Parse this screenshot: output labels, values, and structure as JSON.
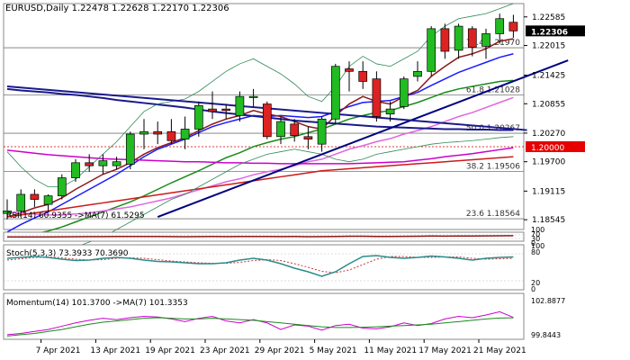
{
  "symbol_header": "EURUSD,Daily  1.22478 1.22628 1.22170 1.22306",
  "chart_data": {
    "type": "candlestick",
    "symbol": "EURUSD",
    "timeframe": "Daily",
    "ohlc_header": {
      "open": 1.22478,
      "high": 1.22628,
      "low": 1.2217,
      "close": 1.22306
    },
    "current_price": "1.22306",
    "price_axis_ticks": [
      1.22585,
      1.22015,
      1.21425,
      1.20855,
      1.2027,
      1.197,
      1.19115,
      1.18545
    ],
    "ylim": [
      1.1835,
      1.2285
    ],
    "x_labels": [
      "7 Apr 2021",
      "13 Apr 2021",
      "19 Apr 2021",
      "23 Apr 2021",
      "29 Apr 2021",
      "5 May 2021",
      "11 May 2021",
      "17 May 2021",
      "21 May 2021"
    ],
    "x_label_days": [
      3,
      7,
      11,
      15,
      19,
      23,
      27,
      31,
      35
    ],
    "candles": [
      {
        "o": 1.1867,
        "h": 1.1895,
        "l": 1.1855,
        "c": 1.1872
      },
      {
        "o": 1.1872,
        "h": 1.1915,
        "l": 1.186,
        "c": 1.1905
      },
      {
        "o": 1.1905,
        "h": 1.1915,
        "l": 1.188,
        "c": 1.1895
      },
      {
        "o": 1.1885,
        "h": 1.1905,
        "l": 1.187,
        "c": 1.1902
      },
      {
        "o": 1.1902,
        "h": 1.1945,
        "l": 1.1895,
        "c": 1.1938
      },
      {
        "o": 1.1938,
        "h": 1.1975,
        "l": 1.193,
        "c": 1.1968
      },
      {
        "o": 1.1968,
        "h": 1.1985,
        "l": 1.195,
        "c": 1.1962
      },
      {
        "o": 1.1962,
        "h": 1.1985,
        "l": 1.1945,
        "c": 1.1972
      },
      {
        "o": 1.1962,
        "h": 1.198,
        "l": 1.1955,
        "c": 1.197
      },
      {
        "o": 1.1965,
        "h": 1.203,
        "l": 1.1955,
        "c": 1.2025
      },
      {
        "o": 1.2025,
        "h": 1.2055,
        "l": 1.1995,
        "c": 1.203
      },
      {
        "o": 1.203,
        "h": 1.205,
        "l": 1.2005,
        "c": 1.2025
      },
      {
        "o": 1.203,
        "h": 1.2055,
        "l": 1.2005,
        "c": 1.2012
      },
      {
        "o": 1.2015,
        "h": 1.206,
        "l": 1.1995,
        "c": 1.2035
      },
      {
        "o": 1.2035,
        "h": 1.209,
        "l": 1.202,
        "c": 1.2082
      },
      {
        "o": 1.2075,
        "h": 1.211,
        "l": 1.2055,
        "c": 1.207
      },
      {
        "o": 1.2075,
        "h": 1.2085,
        "l": 1.2055,
        "c": 1.2072
      },
      {
        "o": 1.2062,
        "h": 1.211,
        "l": 1.205,
        "c": 1.21
      },
      {
        "o": 1.21,
        "h": 1.2115,
        "l": 1.208,
        "c": 1.21
      },
      {
        "o": 1.2085,
        "h": 1.209,
        "l": 1.2015,
        "c": 1.202
      },
      {
        "o": 1.202,
        "h": 1.206,
        "l": 1.2005,
        "c": 1.205
      },
      {
        "o": 1.2045,
        "h": 1.2055,
        "l": 1.201,
        "c": 1.2022
      },
      {
        "o": 1.202,
        "h": 1.204,
        "l": 1.1995,
        "c": 1.2015
      },
      {
        "o": 1.2005,
        "h": 1.206,
        "l": 1.199,
        "c": 1.2055
      },
      {
        "o": 1.2055,
        "h": 1.2165,
        "l": 1.2045,
        "c": 1.216
      },
      {
        "o": 1.2155,
        "h": 1.217,
        "l": 1.211,
        "c": 1.215
      },
      {
        "o": 1.215,
        "h": 1.217,
        "l": 1.2115,
        "c": 1.213
      },
      {
        "o": 1.2135,
        "h": 1.215,
        "l": 1.205,
        "c": 1.206
      },
      {
        "o": 1.2065,
        "h": 1.209,
        "l": 1.205,
        "c": 1.2075
      },
      {
        "o": 1.208,
        "h": 1.214,
        "l": 1.2075,
        "c": 1.2135
      },
      {
        "o": 1.214,
        "h": 1.217,
        "l": 1.213,
        "c": 1.215
      },
      {
        "o": 1.215,
        "h": 1.224,
        "l": 1.214,
        "c": 1.2235
      },
      {
        "o": 1.2235,
        "h": 1.2245,
        "l": 1.2175,
        "c": 1.219
      },
      {
        "o": 1.2192,
        "h": 1.2245,
        "l": 1.2175,
        "c": 1.224
      },
      {
        "o": 1.2235,
        "h": 1.224,
        "l": 1.218,
        "c": 1.2198
      },
      {
        "o": 1.22,
        "h": 1.2235,
        "l": 1.2175,
        "c": 1.2225
      },
      {
        "o": 1.2225,
        "h": 1.2265,
        "l": 1.2205,
        "c": 1.2255
      },
      {
        "o": 1.22478,
        "h": 1.22628,
        "l": 1.2217,
        "c": 1.22306
      }
    ],
    "indicators": [
      {
        "name": "blue_ma_short",
        "color": "#1a1aff",
        "values": [
          1.183,
          1.1845,
          1.1858,
          1.187,
          1.1885,
          1.19,
          1.1915,
          1.193,
          1.1945,
          1.1962,
          1.198,
          1.1995,
          1.2005,
          1.2015,
          1.2028,
          1.204,
          1.2048,
          1.2055,
          1.2062,
          1.206,
          1.2062,
          1.206,
          1.2058,
          1.206,
          1.207,
          1.208,
          1.2088,
          1.209,
          1.2092,
          1.21,
          1.2108,
          1.2122,
          1.2135,
          1.2148,
          1.2158,
          1.2168,
          1.2178,
          1.2185
        ]
      },
      {
        "name": "dark_red_ma",
        "color": "#8b1a1a",
        "values": [
          1.186,
          1.1868,
          1.1878,
          1.1885,
          1.1898,
          1.1915,
          1.193,
          1.1945,
          1.1955,
          1.1968,
          1.1985,
          1.1998,
          1.2008,
          1.2018,
          1.2032,
          1.2045,
          1.2055,
          1.2062,
          1.2072,
          1.2065,
          1.206,
          1.205,
          1.204,
          1.2035,
          1.2062,
          1.2085,
          1.21,
          1.209,
          1.2085,
          1.21,
          1.2112,
          1.214,
          1.216,
          1.2178,
          1.2185,
          1.2195,
          1.221,
          1.2215
        ]
      },
      {
        "name": "green_ma",
        "color": "#1a8a1a",
        "values": [
          1.1815,
          1.182,
          1.1826,
          1.1832,
          1.184,
          1.185,
          1.186,
          1.187,
          1.188,
          1.189,
          1.1902,
          1.1915,
          1.1928,
          1.194,
          1.1952,
          1.1965,
          1.1978,
          1.1988,
          1.2,
          1.2008,
          1.2015,
          1.202,
          1.2028,
          1.2035,
          1.2045,
          1.2055,
          1.2062,
          1.2068,
          1.2072,
          1.208,
          1.2088,
          1.2098,
          1.2108,
          1.2115,
          1.212,
          1.2125,
          1.213,
          1.2132
        ]
      },
      {
        "name": "violet_ma",
        "color": "#e066e0",
        "values": [
          1.187,
          1.1868,
          1.1866,
          1.1864,
          1.1864,
          1.1866,
          1.1868,
          1.1872,
          1.1876,
          1.188,
          1.1886,
          1.1892,
          1.1898,
          1.1906,
          1.1914,
          1.1922,
          1.193,
          1.1936,
          1.1944,
          1.195,
          1.1955,
          1.1962,
          1.197,
          1.1975,
          1.1985,
          1.1995,
          1.2002,
          1.201,
          1.2016,
          1.2025,
          1.2032,
          1.204,
          1.205,
          1.206,
          1.2068,
          1.2078,
          1.2088,
          1.2098
        ]
      },
      {
        "name": "navy_ma",
        "color": "#1a1a8c",
        "values": [
          1.2115,
          1.2112,
          1.211,
          1.2108,
          1.2105,
          1.2103,
          1.21,
          1.2097,
          1.2093,
          1.209,
          1.2087,
          1.2084,
          1.2081,
          1.2078,
          1.2074,
          1.207,
          1.2067,
          1.2064,
          1.2061,
          1.2058,
          1.2055,
          1.2052,
          1.205,
          1.2048,
          1.2046,
          1.2044,
          1.2042,
          1.204,
          1.2039,
          1.2038,
          1.2037,
          1.2036,
          1.2035,
          1.2035,
          1.2034,
          1.2034,
          1.2033,
          1.2033
        ]
      },
      {
        "name": "magenta_ma",
        "color": "#cc00cc",
        "values": [
          1.1993,
          1.199,
          1.1987,
          1.1984,
          1.1982,
          1.198,
          1.1978,
          1.1976,
          1.1975,
          1.1974,
          1.1973,
          1.1972,
          1.1971,
          1.197,
          1.197,
          1.1969,
          1.1968,
          1.1968,
          1.1967,
          1.1967,
          1.1966,
          1.1966,
          1.1966,
          1.1966,
          1.1966,
          1.1966,
          1.1967,
          1.1968,
          1.1969,
          1.197,
          1.1973,
          1.1976,
          1.198,
          1.1983,
          1.1986,
          1.199,
          1.1994,
          1.1998
        ]
      },
      {
        "name": "red_ma",
        "color": "#cc1a1a",
        "values": [
          1.186,
          1.1864,
          1.1868,
          1.1872,
          1.1876,
          1.188,
          1.1884,
          1.1888,
          1.1892,
          1.1896,
          1.19,
          1.1904,
          1.1908,
          1.1912,
          1.1916,
          1.192,
          1.1924,
          1.1928,
          1.1932,
          1.1936,
          1.194,
          1.1944,
          1.1948,
          1.1952,
          1.1954,
          1.1956,
          1.1958,
          1.196,
          1.1962,
          1.1964,
          1.1966,
          1.1968,
          1.197,
          1.1972,
          1.1974,
          1.1976,
          1.1978,
          1.198
        ]
      },
      {
        "name": "bollinger_upper",
        "color": "#2e8b57",
        "values": [
          1.199,
          1.196,
          1.1935,
          1.192,
          1.192,
          1.1935,
          1.196,
          1.1985,
          1.201,
          1.204,
          1.207,
          1.2085,
          1.209,
          1.2095,
          1.211,
          1.213,
          1.215,
          1.2165,
          1.2175,
          1.216,
          1.2145,
          1.2125,
          1.21,
          1.209,
          1.212,
          1.216,
          1.218,
          1.2165,
          1.216,
          1.2175,
          1.219,
          1.222,
          1.224,
          1.2255,
          1.226,
          1.2265,
          1.2275,
          1.2285
        ]
      },
      {
        "name": "bollinger_lower",
        "color": "#2e8b57",
        "values": [
          1.176,
          1.1765,
          1.177,
          1.178,
          1.179,
          1.18,
          1.181,
          1.182,
          1.1835,
          1.185,
          1.1865,
          1.188,
          1.1895,
          1.1905,
          1.192,
          1.1935,
          1.195,
          1.1965,
          1.1975,
          1.1985,
          1.199,
          1.1995,
          1.199,
          1.1985,
          1.1975,
          1.197,
          1.1975,
          1.1985,
          1.199,
          1.1995,
          1.2,
          1.2005,
          1.2008,
          1.201,
          1.2012,
          1.2015,
          1.2018,
          1.202
        ]
      }
    ],
    "trendlines": [
      {
        "name": "trendline_black",
        "color": "#000080",
        "start": {
          "day": 11,
          "price": 1.186
        },
        "end": {
          "day": 41,
          "price": 1.2172
        }
      },
      {
        "name": "navy_horizontal",
        "color": "#1a1a8c",
        "start": {
          "day": 0,
          "price": 1.212
        },
        "end": {
          "day": 38,
          "price": 1.2033
        }
      }
    ],
    "fib_levels": [
      {
        "label": "76.4 1.21970",
        "price": 1.2197
      },
      {
        "label": "61.8 1.21028",
        "price": 1.21028
      },
      {
        "label": "50.0 1.20267",
        "price": 1.20267
      },
      {
        "label": "38.2 1.19506",
        "price": 1.19506
      },
      {
        "label": "23.6 1.18564",
        "price": 1.18564
      }
    ],
    "highlight_level": {
      "label": "1.20000",
      "price": 1.2
    },
    "rsi": {
      "label": "RSI(14) 60.9355 ->MA(7) 61.5295",
      "scale_labels": [
        "100",
        "70",
        "30",
        "0"
      ],
      "values": [
        48,
        47,
        47,
        48,
        49,
        50,
        51,
        51,
        52,
        52,
        53,
        52,
        51,
        50,
        51,
        52,
        51,
        52,
        53,
        52,
        51,
        52,
        50,
        51,
        52,
        55,
        55,
        53,
        52,
        54,
        55,
        57,
        56,
        57,
        58,
        59,
        60,
        61
      ]
    },
    "stoch": {
      "label": "Stoch(5,3,3) 73.3933 70.3690",
      "scale_labels": [
        "100",
        "80",
        "20",
        "0"
      ],
      "main": [
        70,
        72,
        74,
        72,
        68,
        65,
        66,
        70,
        72,
        70,
        66,
        63,
        62,
        60,
        58,
        58,
        60,
        66,
        70,
        66,
        58,
        48,
        40,
        30,
        40,
        58,
        74,
        76,
        72,
        70,
        72,
        75,
        73,
        70,
        66,
        70,
        72,
        73
      ],
      "signal": [
        66,
        69,
        72,
        73,
        71,
        68,
        66,
        67,
        70,
        71,
        70,
        67,
        64,
        62,
        60,
        59,
        59,
        61,
        65,
        67,
        65,
        58,
        50,
        41,
        38,
        44,
        56,
        68,
        74,
        74,
        72,
        72,
        73,
        73,
        70,
        68,
        69,
        70
      ]
    },
    "momentum": {
      "label": "Momentum(14) 101.3700 ->MA(7) 101.3353",
      "scale_labels": [
        "102.8877",
        "99.8443"
      ],
      "main": [
        100.05,
        100.15,
        100.3,
        100.45,
        100.7,
        100.95,
        101.15,
        101.3,
        101.2,
        101.35,
        101.45,
        101.4,
        101.25,
        101.05,
        101.3,
        101.45,
        101.1,
        100.95,
        101.2,
        100.95,
        100.45,
        100.8,
        100.7,
        100.4,
        100.75,
        100.85,
        100.55,
        100.5,
        100.65,
        100.95,
        100.75,
        100.9,
        101.25,
        101.45,
        101.35,
        101.55,
        101.8,
        101.37
      ],
      "ma": [
        99.95,
        100.05,
        100.15,
        100.3,
        100.45,
        100.65,
        100.85,
        101.0,
        101.1,
        101.2,
        101.3,
        101.35,
        101.3,
        101.25,
        101.25,
        101.3,
        101.25,
        101.2,
        101.15,
        101.05,
        100.95,
        100.85,
        100.75,
        100.65,
        100.6,
        100.6,
        100.62,
        100.65,
        100.7,
        100.75,
        100.8,
        100.85,
        100.95,
        101.05,
        101.15,
        101.25,
        101.32,
        101.34
      ]
    },
    "indicator_ranges": {
      "rsi": [
        0,
        100
      ],
      "stoch": [
        0,
        100
      ],
      "momentum": [
        99.7,
        103.2
      ]
    }
  }
}
